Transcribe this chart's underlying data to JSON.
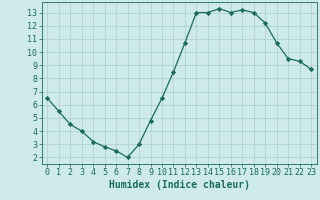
{
  "xlabel": "Humidex (Indice chaleur)",
  "x": [
    0,
    1,
    2,
    3,
    4,
    5,
    6,
    7,
    8,
    9,
    10,
    11,
    12,
    13,
    14,
    15,
    16,
    17,
    18,
    19,
    20,
    21,
    22,
    23
  ],
  "y": [
    6.5,
    5.5,
    4.5,
    4.0,
    3.2,
    2.8,
    2.5,
    2.0,
    3.0,
    4.8,
    6.5,
    8.5,
    10.7,
    13.0,
    13.0,
    13.3,
    13.0,
    13.2,
    13.0,
    12.2,
    10.7,
    9.5,
    9.3,
    8.7
  ],
  "line_color": "#1a6b5e",
  "marker": "D",
  "marker_size": 2.2,
  "bg_color": "#ceeaea",
  "xlim": [
    -0.5,
    23.5
  ],
  "ylim": [
    1.5,
    13.8
  ],
  "yticks": [
    2,
    3,
    4,
    5,
    6,
    7,
    8,
    9,
    10,
    11,
    12,
    13
  ],
  "xticks": [
    0,
    1,
    2,
    3,
    4,
    5,
    6,
    7,
    8,
    9,
    10,
    11,
    12,
    13,
    14,
    15,
    16,
    17,
    18,
    19,
    20,
    21,
    22,
    23
  ],
  "grid_color": "#aacece",
  "tick_label_color": "#1a6b5e",
  "xlabel_color": "#1a6b5e",
  "xlabel_fontsize": 7,
  "tick_fontsize": 6,
  "linewidth": 0.9
}
